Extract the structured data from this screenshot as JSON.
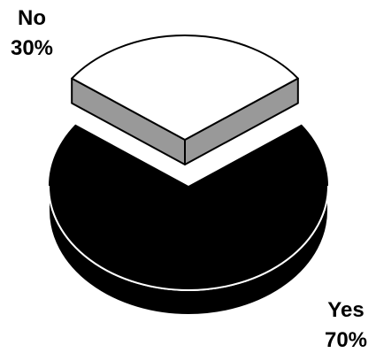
{
  "chart_data": {
    "type": "pie",
    "style": "3d-exploded",
    "categories": [
      "No",
      "Yes"
    ],
    "values": [
      30,
      70
    ],
    "value_labels": [
      "30%",
      "70%"
    ],
    "colors": {
      "No": "#ffffff",
      "No_side": "#999999",
      "Yes": "#000000",
      "outline": "#000000"
    },
    "exploded": [
      "No"
    ],
    "legend": "none"
  }
}
